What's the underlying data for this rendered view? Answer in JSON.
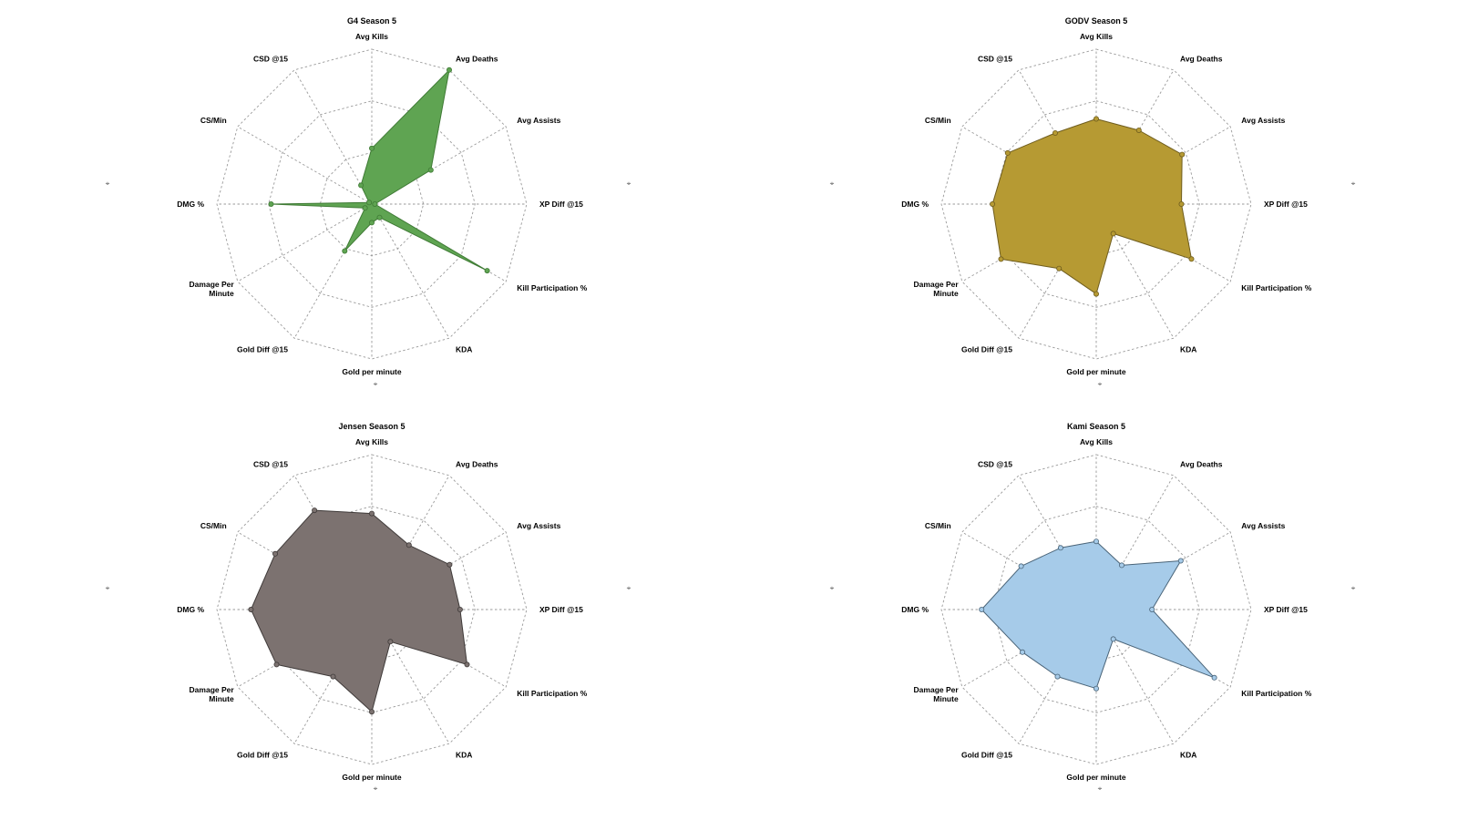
{
  "window": {
    "corner_marks": [
      "⌖"
    ]
  },
  "chart_data": [
    {
      "type": "radar",
      "title": "G4 Season 5",
      "axes": [
        "Avg Kills",
        "Avg Deaths",
        "Avg Assists",
        "XP Diff @15",
        "Kill Participation %",
        "KDA",
        "Gold per minute",
        "Gold Diff @15",
        "Damage Per Minute",
        "DMG %",
        "CS/Min",
        "CSD @15"
      ],
      "rlim": [
        0,
        1
      ],
      "rings": 3,
      "grid": true,
      "series": [
        {
          "color": "#5fa452",
          "stroke": "#3f7a35",
          "values": [
            0.36,
            1.0,
            0.44,
            0.02,
            0.86,
            0.1,
            0.12,
            0.35,
            0.05,
            0.65,
            0.02,
            0.14
          ]
        }
      ]
    },
    {
      "type": "radar",
      "title": "GODV Season 5",
      "axes": [
        "Avg Kills",
        "Avg Deaths",
        "Avg Assists",
        "XP Diff @15",
        "Kill Participation %",
        "KDA",
        "Gold per minute",
        "Gold Diff @15",
        "Damage Per Minute",
        "DMG %",
        "CS/Min",
        "CSD @15"
      ],
      "rlim": [
        0,
        1
      ],
      "rings": 3,
      "grid": true,
      "series": [
        {
          "color": "#b69a33",
          "stroke": "#6f5d1e",
          "values": [
            0.55,
            0.55,
            0.64,
            0.55,
            0.71,
            0.22,
            0.58,
            0.48,
            0.71,
            0.67,
            0.66,
            0.53
          ]
        }
      ]
    },
    {
      "type": "radar",
      "title": "Jensen Season 5",
      "axes": [
        "Avg Kills",
        "Avg Deaths",
        "Avg Assists",
        "XP Diff @15",
        "Kill Participation %",
        "KDA",
        "Gold per minute",
        "Gold Diff @15",
        "Damage Per Minute",
        "DMG %",
        "CS/Min",
        "CSD @15"
      ],
      "rlim": [
        0,
        1
      ],
      "rings": 3,
      "grid": true,
      "series": [
        {
          "color": "#7c7270",
          "stroke": "#3f3a39",
          "values": [
            0.62,
            0.48,
            0.58,
            0.57,
            0.71,
            0.24,
            0.66,
            0.5,
            0.71,
            0.78,
            0.72,
            0.74
          ]
        }
      ]
    },
    {
      "type": "radar",
      "title": "Kami Season 5",
      "axes": [
        "Avg Kills",
        "Avg Deaths",
        "Avg Assists",
        "XP Diff @15",
        "Kill Participation %",
        "KDA",
        "Gold per minute",
        "Gold Diff @15",
        "Damage Per Minute",
        "DMG %",
        "CS/Min",
        "CSD @15"
      ],
      "rlim": [
        0,
        1
      ],
      "rings": 3,
      "grid": true,
      "series": [
        {
          "color": "#a6cbe9",
          "stroke": "#4a6478",
          "values": [
            0.44,
            0.33,
            0.63,
            0.36,
            0.88,
            0.22,
            0.51,
            0.5,
            0.55,
            0.74,
            0.56,
            0.46
          ]
        }
      ]
    }
  ]
}
